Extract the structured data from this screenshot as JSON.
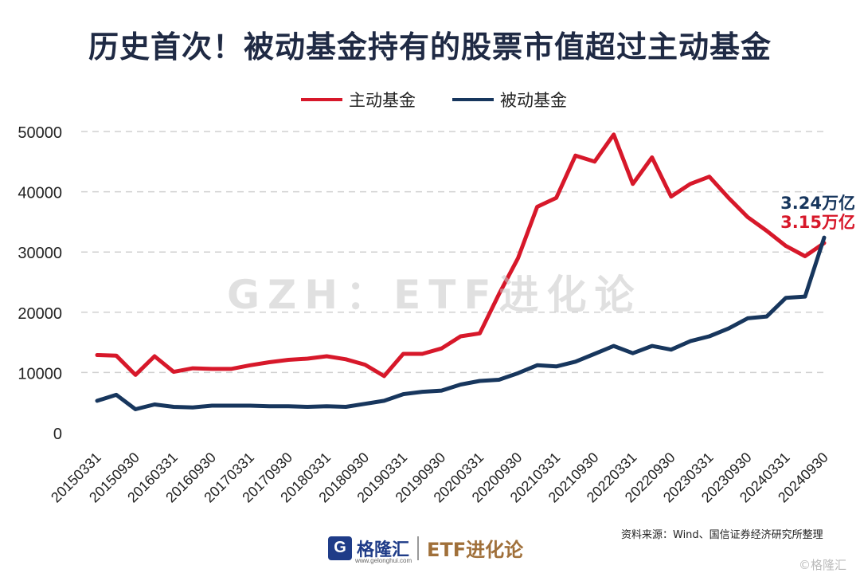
{
  "title": "历史首次！被动基金持有的股票市值超过主动基金",
  "watermark": "GZH：ETF进化论",
  "source": "资料来源：Wind、国信证券经济研究所整理",
  "footer": {
    "logo_letter": "G",
    "logo_name": "格隆汇",
    "logo_url": "www.gelonghui.com",
    "brand": "ETF进化论",
    "corner": "©格隆汇"
  },
  "colors": {
    "active": "#d7182a",
    "passive": "#17365d",
    "title": "#1f2a44"
  },
  "chart_data": {
    "type": "line",
    "title": "历史首次！被动基金持有的股票市值超过主动基金",
    "legend_position": "top-center",
    "grid": true,
    "ylim": [
      0,
      50000
    ],
    "yticks": [
      0,
      10000,
      20000,
      30000,
      40000,
      50000
    ],
    "x": [
      "20150331",
      "20150630",
      "20150930",
      "20151231",
      "20160331",
      "20160630",
      "20160930",
      "20161231",
      "20170331",
      "20170630",
      "20170930",
      "20171231",
      "20180331",
      "20180630",
      "20180930",
      "20181231",
      "20190331",
      "20190630",
      "20190930",
      "20191231",
      "20200331",
      "20200630",
      "20200930",
      "20201231",
      "20210331",
      "20210630",
      "20210930",
      "20211231",
      "20220331",
      "20220630",
      "20220930",
      "20221231",
      "20230331",
      "20230630",
      "20230930",
      "20231231",
      "20240331",
      "20240630",
      "20240930"
    ],
    "x_tick_labels": [
      "20150331",
      "20150930",
      "20160331",
      "20160930",
      "20170331",
      "20170930",
      "20180331",
      "20180930",
      "20190331",
      "20190930",
      "20200331",
      "20200930",
      "20210331",
      "20210930",
      "20220331",
      "20220930",
      "20230331",
      "20230930",
      "20240331",
      "20240930"
    ],
    "series": [
      {
        "name": "主动基金",
        "color": "#d7182a",
        "values": [
          12900,
          12800,
          9600,
          12700,
          10100,
          10700,
          10600,
          10600,
          11200,
          11700,
          12100,
          12300,
          12700,
          12200,
          11300,
          9400,
          13100,
          13100,
          14000,
          16000,
          16500,
          23000,
          29000,
          37500,
          39000,
          46000,
          45000,
          49500,
          41300,
          45700,
          39200,
          41300,
          42500,
          39000,
          35800,
          33500,
          31000,
          29300,
          31500
        ]
      },
      {
        "name": "被动基金",
        "color": "#17365d",
        "values": [
          5300,
          6300,
          3900,
          4700,
          4300,
          4200,
          4500,
          4500,
          4500,
          4400,
          4400,
          4300,
          4400,
          4300,
          4800,
          5300,
          6400,
          6800,
          7000,
          8000,
          8600,
          8800,
          9900,
          11200,
          11000,
          11800,
          13100,
          14400,
          13200,
          14400,
          13800,
          15200,
          16000,
          17300,
          19000,
          19300,
          22400,
          22600,
          32400
        ]
      }
    ],
    "annotations": [
      {
        "text": "3.24万亿",
        "color": "#17365d"
      },
      {
        "text": "3.15万亿",
        "color": "#d7182a"
      }
    ]
  }
}
